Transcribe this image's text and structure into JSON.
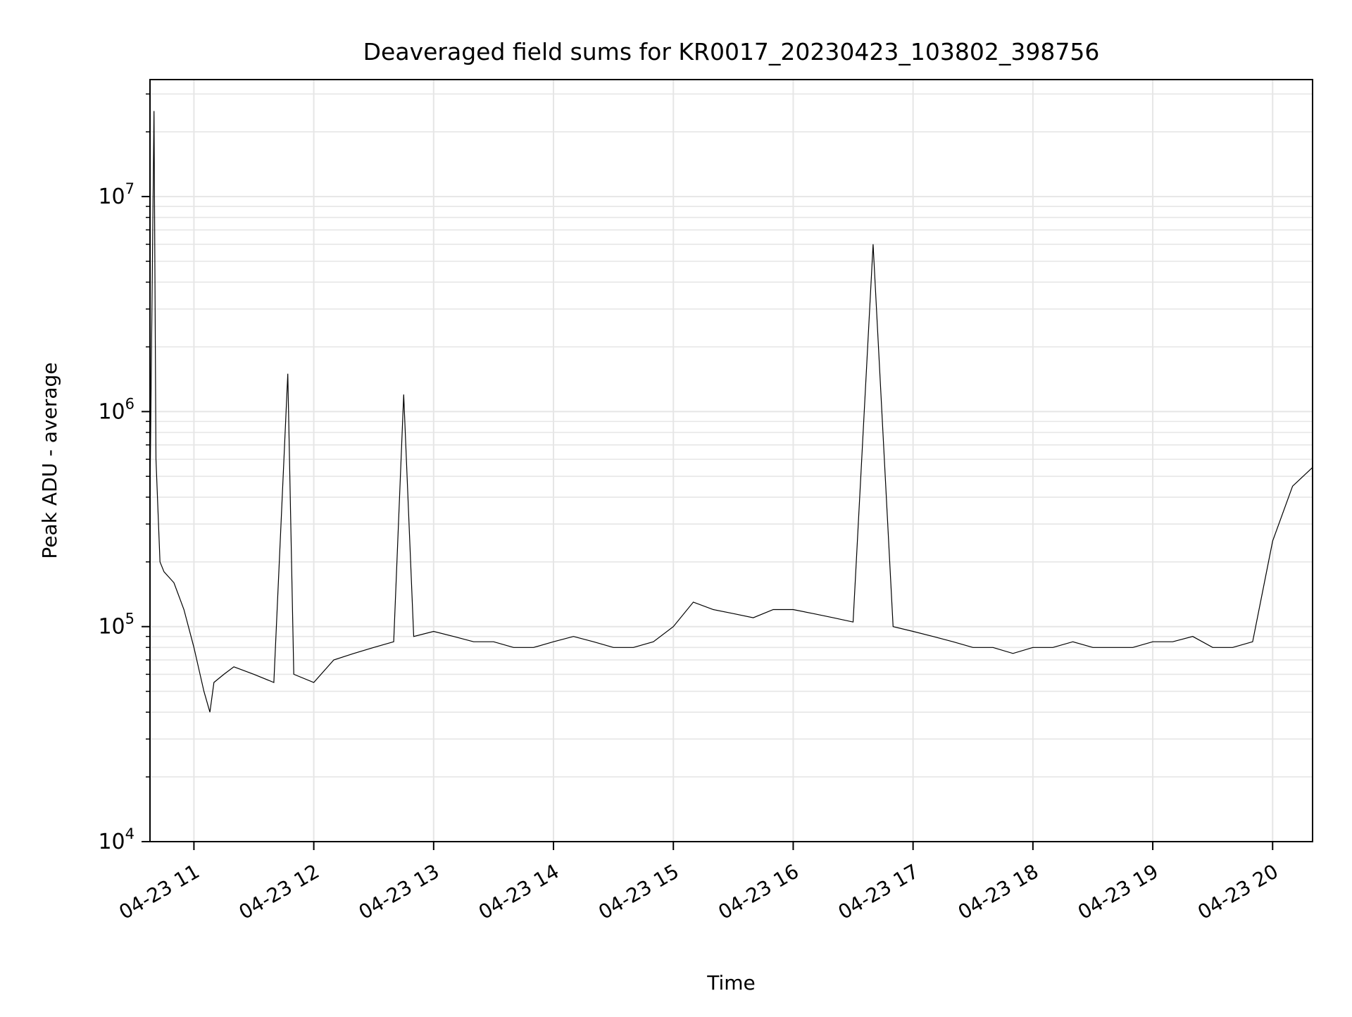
{
  "chart_data": {
    "type": "line",
    "title": "Deaveraged field sums for KR0017_20230423_103802_398756",
    "xlabel": "Time",
    "ylabel": "Peak ADU - average",
    "yscale": "log",
    "ylim": [
      10000,
      35000000
    ],
    "xlim": [
      "2023-04-23 10:38",
      "2023-04-23 20:20"
    ],
    "x_ticks": [
      "04-23 11",
      "04-23 12",
      "04-23 13",
      "04-23 14",
      "04-23 15",
      "04-23 16",
      "04-23 17",
      "04-23 18",
      "04-23 19",
      "04-23 20"
    ],
    "y_ticks": [
      {
        "base": "10",
        "exp": "4",
        "value": 10000
      },
      {
        "base": "10",
        "exp": "5",
        "value": 100000
      },
      {
        "base": "10",
        "exp": "6",
        "value": 1000000
      },
      {
        "base": "10",
        "exp": "7",
        "value": 10000000
      }
    ],
    "grid": true,
    "line_color": "#000000",
    "grid_color": "#e6e6e6",
    "series": [
      {
        "x": [
          "2023-04-23 10:38",
          "2023-04-23 10:40",
          "2023-04-23 10:41",
          "2023-04-23 10:43",
          "2023-04-23 10:45",
          "2023-04-23 10:50",
          "2023-04-23 10:55",
          "2023-04-23 11:00",
          "2023-04-23 11:05",
          "2023-04-23 11:08",
          "2023-04-23 11:10",
          "2023-04-23 11:15",
          "2023-04-23 11:20",
          "2023-04-23 11:30",
          "2023-04-23 11:40",
          "2023-04-23 11:47",
          "2023-04-23 11:50",
          "2023-04-23 12:00",
          "2023-04-23 12:10",
          "2023-04-23 12:20",
          "2023-04-23 12:30",
          "2023-04-23 12:40",
          "2023-04-23 12:45",
          "2023-04-23 12:50",
          "2023-04-23 13:00",
          "2023-04-23 13:10",
          "2023-04-23 13:20",
          "2023-04-23 13:30",
          "2023-04-23 13:40",
          "2023-04-23 13:50",
          "2023-04-23 14:00",
          "2023-04-23 14:10",
          "2023-04-23 14:20",
          "2023-04-23 14:30",
          "2023-04-23 14:40",
          "2023-04-23 14:50",
          "2023-04-23 15:00",
          "2023-04-23 15:10",
          "2023-04-23 15:20",
          "2023-04-23 15:30",
          "2023-04-23 15:40",
          "2023-04-23 15:50",
          "2023-04-23 16:00",
          "2023-04-23 16:10",
          "2023-04-23 16:20",
          "2023-04-23 16:30",
          "2023-04-23 16:40",
          "2023-04-23 16:50",
          "2023-04-23 17:00",
          "2023-04-23 17:10",
          "2023-04-23 17:20",
          "2023-04-23 17:30",
          "2023-04-23 17:40",
          "2023-04-23 17:50",
          "2023-04-23 18:00",
          "2023-04-23 18:10",
          "2023-04-23 18:20",
          "2023-04-23 18:30",
          "2023-04-23 18:40",
          "2023-04-23 18:50",
          "2023-04-23 19:00",
          "2023-04-23 19:10",
          "2023-04-23 19:20",
          "2023-04-23 19:30",
          "2023-04-23 19:40",
          "2023-04-23 19:50",
          "2023-04-23 20:00",
          "2023-04-23 20:10",
          "2023-04-23 20:20"
        ],
        "y": [
          400000,
          25000000,
          600000,
          200000,
          180000,
          160000,
          120000,
          80000,
          50000,
          40000,
          55000,
          60000,
          65000,
          60000,
          55000,
          1500000,
          60000,
          55000,
          70000,
          75000,
          80000,
          85000,
          1200000,
          90000,
          95000,
          90000,
          85000,
          85000,
          80000,
          80000,
          85000,
          90000,
          85000,
          80000,
          80000,
          85000,
          100000,
          130000,
          120000,
          115000,
          110000,
          120000,
          120000,
          115000,
          110000,
          105000,
          6000000,
          100000,
          95000,
          90000,
          85000,
          80000,
          80000,
          75000,
          80000,
          80000,
          85000,
          80000,
          80000,
          80000,
          85000,
          85000,
          90000,
          80000,
          80000,
          85000,
          250000,
          450000,
          550000
        ]
      }
    ]
  }
}
